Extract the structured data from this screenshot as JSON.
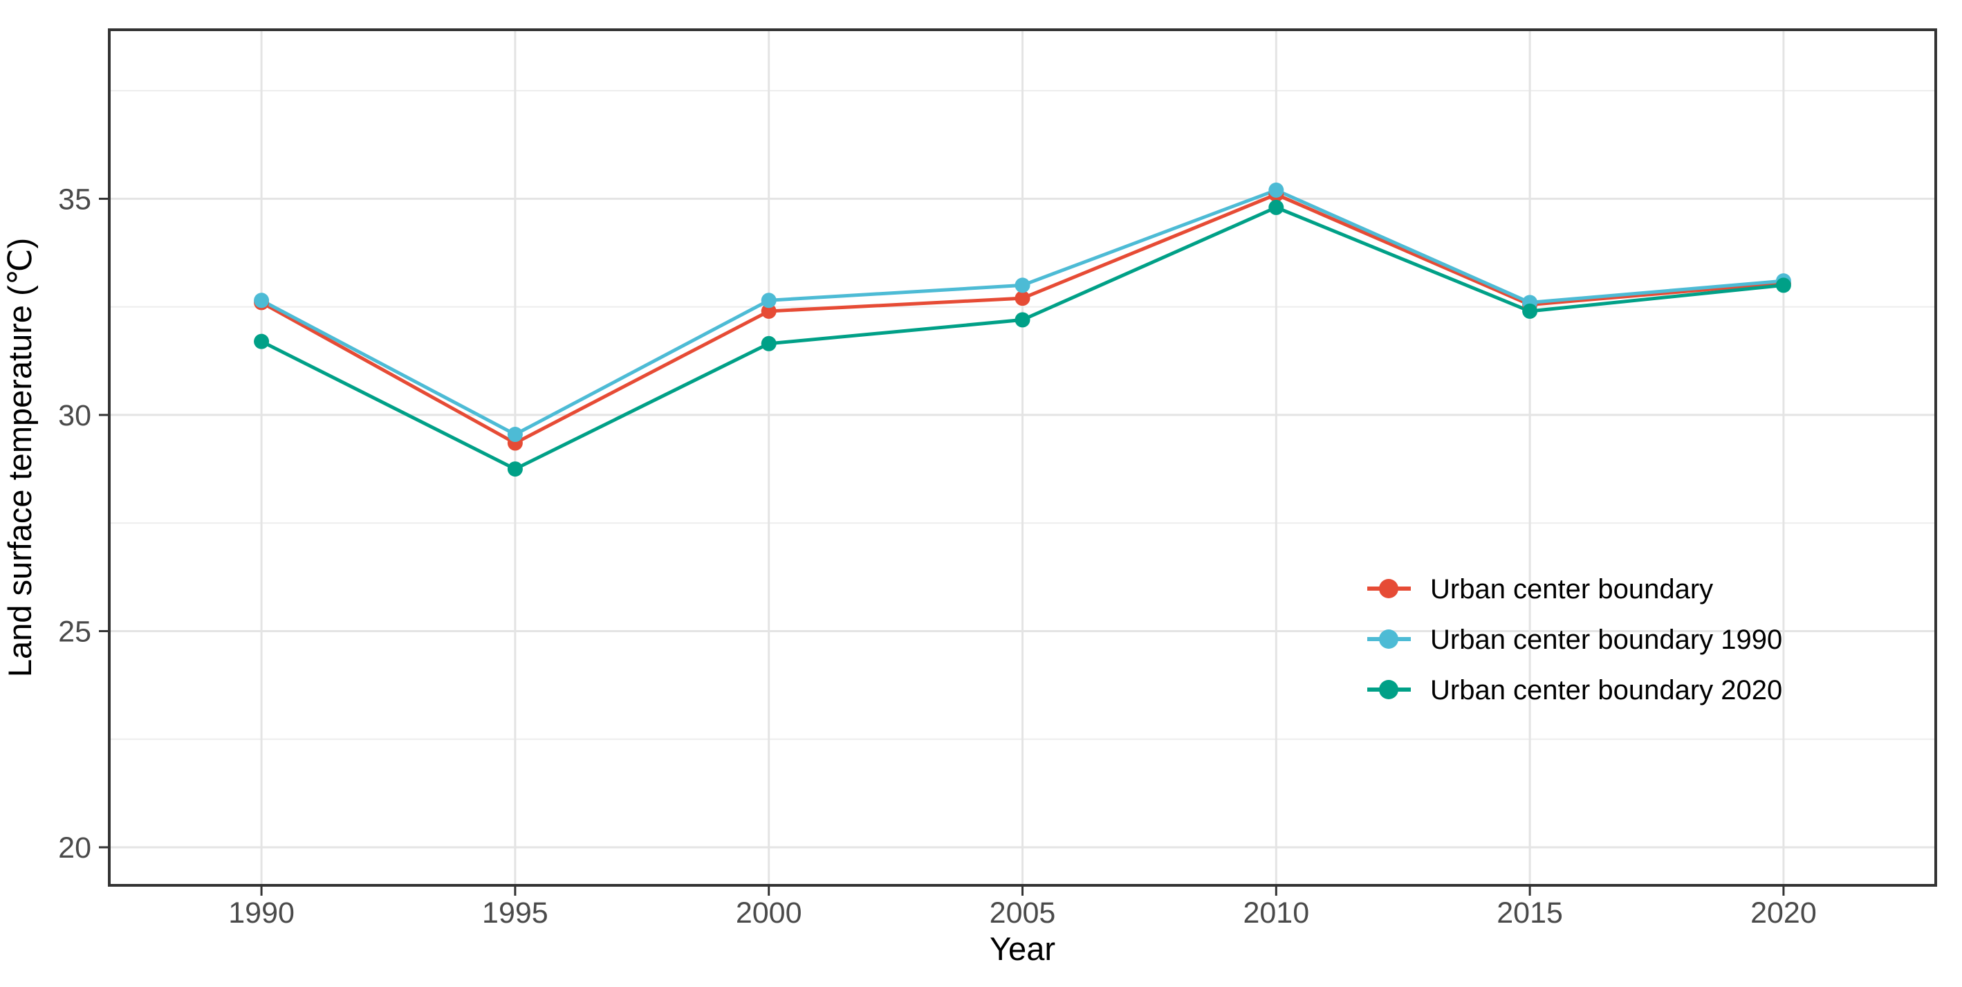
{
  "chart_data": {
    "type": "line",
    "title": "",
    "xlabel": "Year",
    "ylabel": "Land surface temperature (℃)",
    "x": [
      1990,
      1995,
      2000,
      2005,
      2010,
      2015,
      2020
    ],
    "series": [
      {
        "name": "Urban center boundary",
        "color": "#E64B35",
        "values": [
          32.6,
          29.35,
          32.4,
          32.7,
          35.1,
          32.55,
          33.05
        ]
      },
      {
        "name": "Urban center boundary 1990",
        "color": "#4DBBD5",
        "values": [
          32.65,
          29.55,
          32.65,
          33.0,
          35.2,
          32.6,
          33.1
        ]
      },
      {
        "name": "Urban center boundary 2020",
        "color": "#00A087",
        "values": [
          31.7,
          28.75,
          31.65,
          32.2,
          34.8,
          32.4,
          33.0
        ]
      }
    ],
    "x_ticks": [
      "1990",
      "1995",
      "2000",
      "2005",
      "2010",
      "2015",
      "2020"
    ],
    "y_ticks": [
      "20",
      "25",
      "30",
      "35"
    ],
    "x_tick_values": [
      1990,
      1995,
      2000,
      2005,
      2010,
      2015,
      2020
    ],
    "y_tick_values": [
      20,
      25,
      30,
      35
    ],
    "y_minor_values": [
      22.5,
      27.5,
      32.5,
      37.5
    ],
    "xlim": [
      1987.0,
      2023.0
    ],
    "ylim": [
      19.12,
      38.91
    ],
    "grid": {
      "vertical_major": true,
      "horizontal_major": true,
      "horizontal_minor": true,
      "vertical_minor": false
    },
    "legend": {
      "position": "inside-right",
      "entries": [
        "Urban center boundary",
        "Urban center boundary 1990",
        "Urban center boundary 2020"
      ]
    }
  },
  "style": {
    "background": "#FFFFFF",
    "panel_border_color": "#333333",
    "grid_major_color": "#E4E4E4",
    "grid_minor_color": "#EDEDED",
    "tick_color": "#333333",
    "tick_label_color": "#4A4A4A",
    "axis_title_color": "#000000",
    "legend_text_color": "#000000"
  }
}
